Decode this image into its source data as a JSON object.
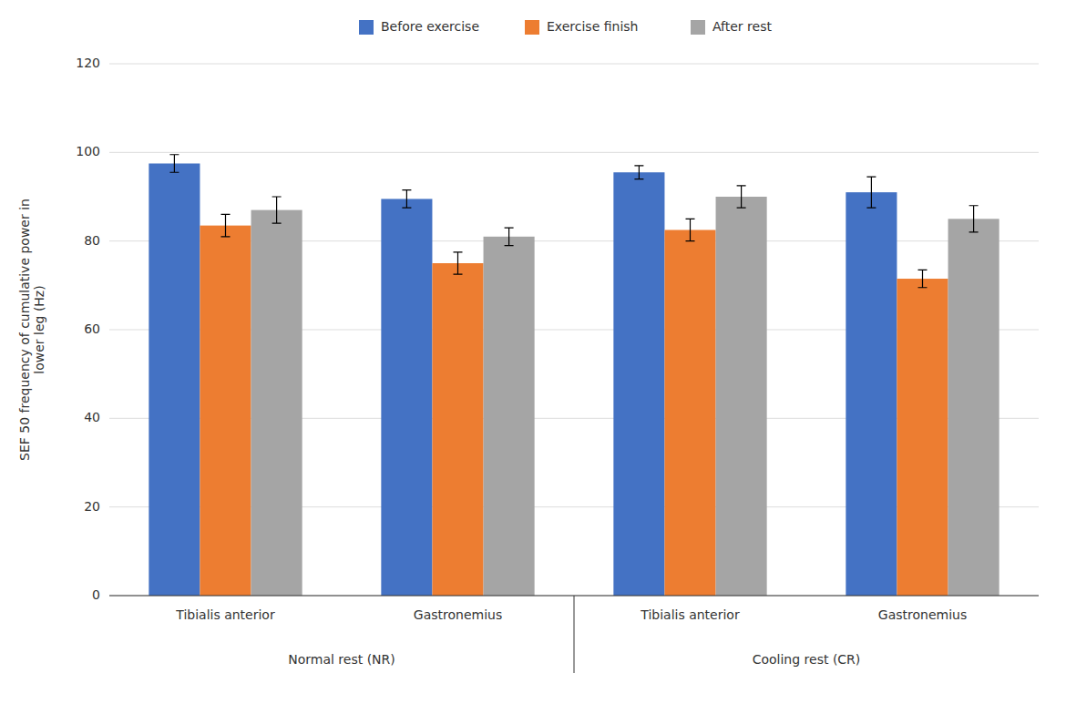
{
  "chart_data": {
    "type": "bar",
    "ylabel": "SEF 50 frequency of cumulative power in\nlower leg (Hz)",
    "categories": [
      "Tibialis anterior",
      "Gastronemius",
      "Tibialis anterior",
      "Gastronemius"
    ],
    "annotations": [
      "Normal rest (NR)",
      "Cooling rest (CR)"
    ],
    "series": [
      {
        "name": "Before exercise",
        "color": "#4472C4",
        "values": [
          97.5,
          89.5,
          95.5,
          91.0
        ],
        "errors": [
          2.0,
          2.0,
          1.5,
          3.5
        ]
      },
      {
        "name": "Exercise finish",
        "color": "#ED7D31",
        "values": [
          83.5,
          75.0,
          82.5,
          71.5
        ],
        "errors": [
          2.5,
          2.5,
          2.5,
          2.0
        ]
      },
      {
        "name": "After rest",
        "color": "#A5A5A5",
        "values": [
          87.0,
          81.0,
          90.0,
          85.0
        ],
        "errors": [
          3.0,
          2.0,
          2.5,
          3.0
        ]
      }
    ],
    "ylim": [
      0,
      120
    ],
    "yticks": [
      0,
      20,
      40,
      60,
      80,
      100,
      120
    ],
    "grid": true,
    "legend": "top"
  }
}
